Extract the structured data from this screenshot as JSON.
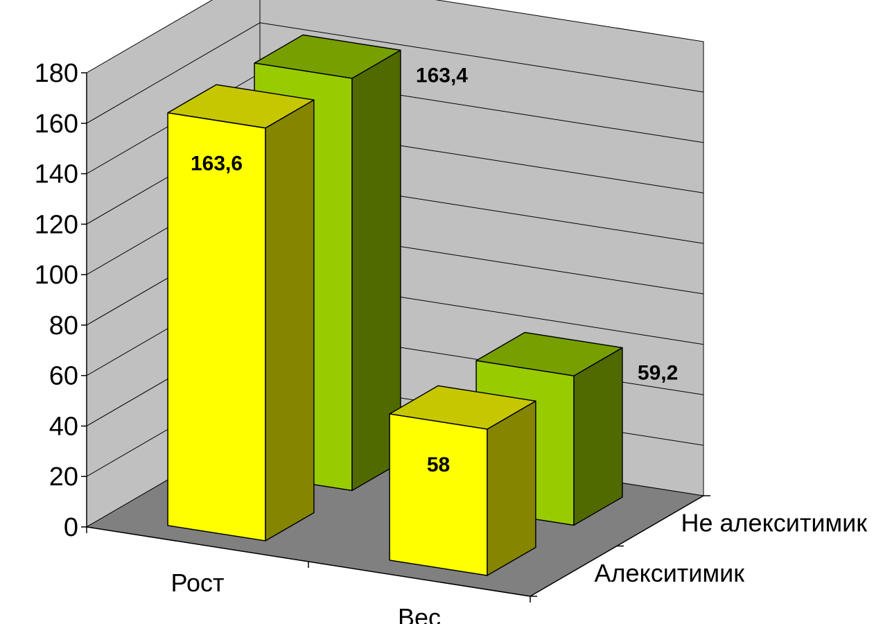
{
  "chart_data": {
    "type": "bar",
    "title": "",
    "xlabel": "",
    "ylabel": "",
    "categories": [
      "Рост",
      "Вес"
    ],
    "series": [
      {
        "name": "Алекситимик",
        "values": [
          163.6,
          58
        ],
        "value_labels": [
          "163,6",
          "58"
        ],
        "color": "#ffff00"
      },
      {
        "name": "Не алекситимик",
        "values": [
          163.4,
          59.2
        ],
        "value_labels": [
          "163,4",
          "59,2"
        ],
        "color": "#99cc00"
      }
    ],
    "ylim": [
      0,
      180
    ],
    "yticks": [
      "0",
      "20",
      "40",
      "60",
      "80",
      "100",
      "120",
      "140",
      "160",
      "180"
    ],
    "grid": true,
    "legend": "none",
    "style": "3d-clustered-column",
    "colors": {
      "walls": "#c0c0c0",
      "floor": "#808080"
    }
  }
}
